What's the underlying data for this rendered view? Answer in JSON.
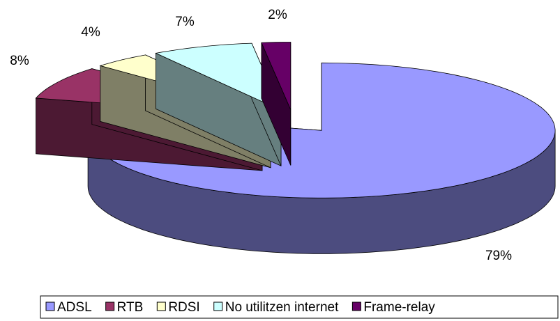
{
  "chart_data": {
    "type": "pie3d",
    "categories": [
      "ADSL",
      "RTB",
      "RDSI",
      "No utilitzen internet",
      "Frame-relay"
    ],
    "values": [
      79,
      8,
      4,
      7,
      2
    ],
    "value_labels": [
      "79%",
      "8%",
      "4%",
      "7%",
      "2%"
    ],
    "colors": [
      "#9999ff",
      "#993366",
      "#ffffcc",
      "#ccffff",
      "#660066"
    ],
    "legend": "bottom"
  }
}
